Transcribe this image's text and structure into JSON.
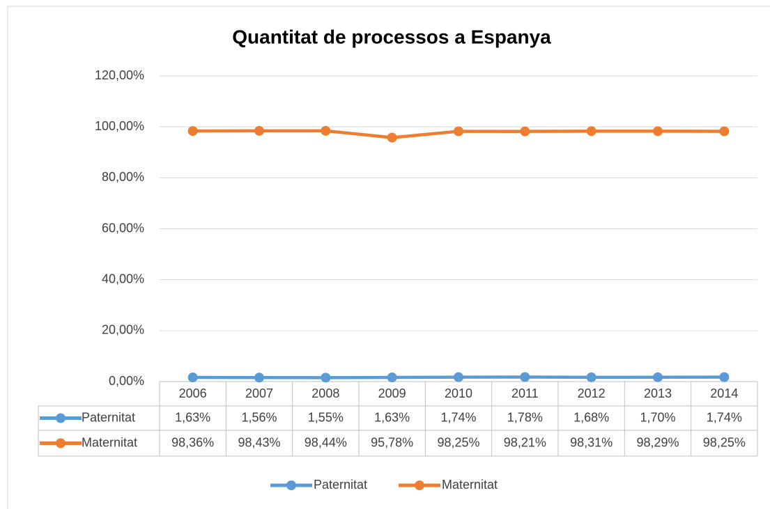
{
  "chart_data": {
    "type": "line",
    "title": "Quantitat de processos a Espanya",
    "categories": [
      "2006",
      "2007",
      "2008",
      "2009",
      "2010",
      "2011",
      "2012",
      "2013",
      "2014"
    ],
    "series": [
      {
        "name": "Paternitat",
        "color": "#5b9bd5",
        "values": [
          1.63,
          1.56,
          1.55,
          1.63,
          1.74,
          1.78,
          1.68,
          1.7,
          1.74
        ],
        "value_labels": [
          "1,63%",
          "1,56%",
          "1,55%",
          "1,63%",
          "1,74%",
          "1,78%",
          "1,68%",
          "1,70%",
          "1,74%"
        ]
      },
      {
        "name": "Maternitat",
        "color": "#ed7d31",
        "values": [
          98.36,
          98.43,
          98.44,
          95.78,
          98.25,
          98.21,
          98.31,
          98.29,
          98.25
        ],
        "value_labels": [
          "98,36%",
          "98,43%",
          "98,44%",
          "95,78%",
          "98,25%",
          "98,21%",
          "98,31%",
          "98,29%",
          "98,25%"
        ]
      }
    ],
    "ylim": [
      0,
      120
    ],
    "yticks": [
      {
        "value": 0,
        "label": "0,00%"
      },
      {
        "value": 20,
        "label": "20,00%"
      },
      {
        "value": 40,
        "label": "40,00%"
      },
      {
        "value": 60,
        "label": "60,00%"
      },
      {
        "value": 80,
        "label": "80,00%"
      },
      {
        "value": 100,
        "label": "100,00%"
      },
      {
        "value": 120,
        "label": "120,00%"
      }
    ],
    "grid": true,
    "legend": "bottom"
  }
}
